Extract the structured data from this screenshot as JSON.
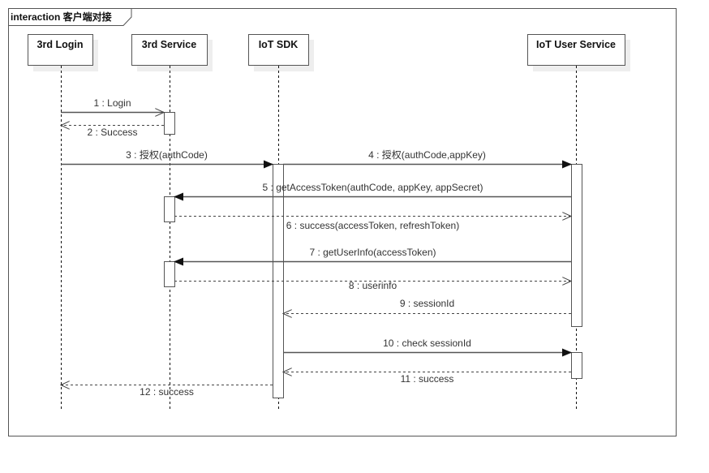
{
  "frame": {
    "title": "interaction 客户端对接"
  },
  "lifelines": [
    {
      "id": "login",
      "name": "3rd Login"
    },
    {
      "id": "service",
      "name": "3rd Service"
    },
    {
      "id": "sdk",
      "name": "IoT SDK"
    },
    {
      "id": "user",
      "name": "IoT User Service"
    }
  ],
  "messages": [
    {
      "label": "1 : Login",
      "from": "3rd Login",
      "to": "3rd Service",
      "kind": "async"
    },
    {
      "label": "2 : Success",
      "from": "3rd Service",
      "to": "3rd Login",
      "kind": "return"
    },
    {
      "label": "3 : 授权(authCode)",
      "from": "3rd Login",
      "to": "IoT SDK",
      "kind": "sync"
    },
    {
      "label": "4 : 授权(authCode,appKey)",
      "from": "IoT SDK",
      "to": "IoT User Service",
      "kind": "sync"
    },
    {
      "label": "5 : getAccessToken(authCode, appKey, appSecret)",
      "from": "IoT User Service",
      "to": "3rd Service",
      "kind": "sync"
    },
    {
      "label": "6 : success(accessToken, refreshToken)",
      "from": "3rd Service",
      "to": "IoT User Service",
      "kind": "return"
    },
    {
      "label": "7 : getUserInfo(accessToken)",
      "from": "IoT User Service",
      "to": "3rd Service",
      "kind": "sync"
    },
    {
      "label": "8 : userinfo",
      "from": "3rd Service",
      "to": "IoT User Service",
      "kind": "return"
    },
    {
      "label": "9 : sessionId",
      "from": "IoT User Service",
      "to": "IoT SDK",
      "kind": "return"
    },
    {
      "label": "10 : check sessionId",
      "from": "IoT SDK",
      "to": "IoT User Service",
      "kind": "sync"
    },
    {
      "label": "11 : success",
      "from": "IoT User Service",
      "to": "IoT SDK",
      "kind": "return"
    },
    {
      "label": "12 : success",
      "from": "IoT SDK",
      "to": "3rd Login",
      "kind": "return"
    }
  ]
}
